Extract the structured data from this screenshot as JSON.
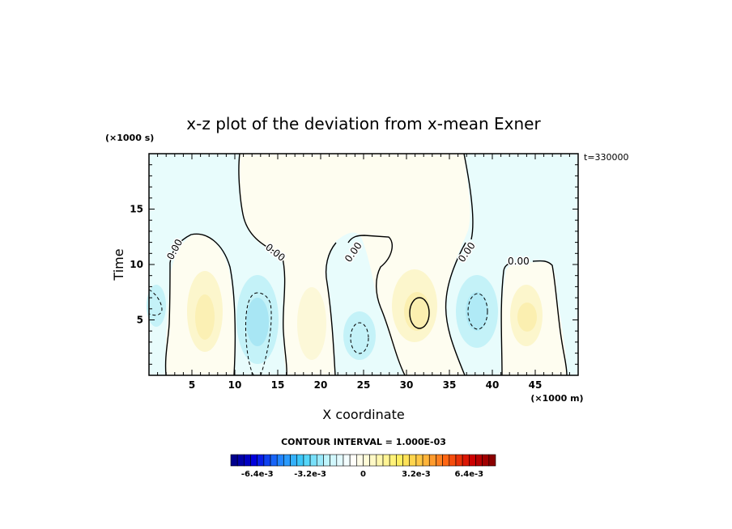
{
  "chart_data": {
    "type": "heatmap",
    "title": "x-z plot of the deviation from x-mean Exner",
    "xlabel": "X coordinate",
    "ylabel": "Time",
    "x_unit": "(×1000 m)",
    "y_unit": "(×1000 s)",
    "time_label": "t=330000",
    "xlim": [
      0,
      50
    ],
    "ylim": [
      0,
      20
    ],
    "xticks": [
      5,
      10,
      15,
      20,
      25,
      30,
      35,
      40,
      45
    ],
    "yticks": [
      5,
      10,
      15
    ],
    "contour_interval_text": "CONTOUR INTERVAL = 1.000E-03",
    "contour_labels": [
      "0.00",
      "0.00",
      "0.00",
      "0.00",
      "0.00"
    ],
    "colorbar": {
      "labels": [
        "-6.4e-3",
        "-3.2e-3",
        "0",
        "3.2e-3",
        "6.4e-3"
      ],
      "label_values": [
        -0.0064,
        -0.0032,
        0,
        0.0032,
        0.0064
      ],
      "range": [
        -0.008,
        0.008
      ],
      "levels": 40
    },
    "grid": false,
    "legend": "none",
    "colors": {
      "negative_weak": "#e8fcfc",
      "negative_mid": "#c0f2f8",
      "negative_strong": "#a8e6f4",
      "positive_weak": "#fefdf0",
      "positive_mid": "#fcf6cc",
      "positive_strong": "#fbefb0",
      "colorbar_stops": [
        "#000080",
        "#0000e0",
        "#2080ff",
        "#40d0f8",
        "#c0f4fc",
        "#ffffff",
        "#fff8c0",
        "#fff060",
        "#ffc040",
        "#ff6010",
        "#d00000",
        "#800000"
      ]
    }
  }
}
